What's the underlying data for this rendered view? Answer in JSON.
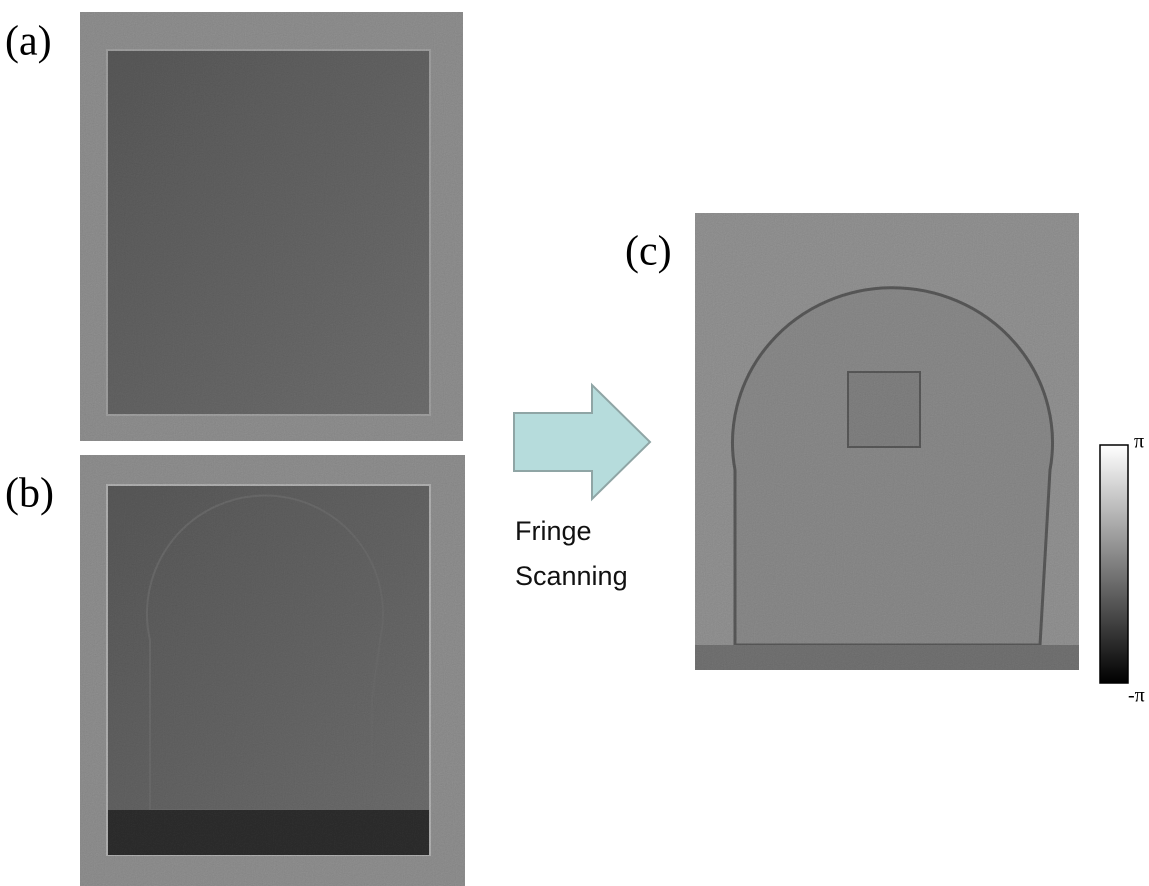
{
  "panels": [
    {
      "label": "(a)"
    },
    {
      "label": "(b)"
    },
    {
      "label": "(c)"
    }
  ],
  "arrow": {
    "label_lines": [
      "Fringe",
      "Scanning"
    ]
  },
  "colorbar": {
    "max_label": "π",
    "min_label": "-π"
  }
}
